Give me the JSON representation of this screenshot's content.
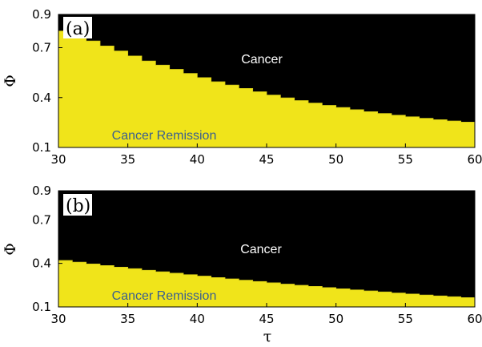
{
  "colors": {
    "cancer": "#000000",
    "remission": "#f0e41a",
    "cancer_label": "#ffffff",
    "remission_label": "#3a5f8f"
  },
  "chart_data": [
    {
      "type": "area",
      "panel_label": "(a)",
      "xlabel": "",
      "ylabel": "Φ",
      "xlim": [
        30,
        60
      ],
      "ylim": [
        0.1,
        0.9
      ],
      "xticks": [
        "30",
        "35",
        "40",
        "45",
        "50",
        "55",
        "60"
      ],
      "yticks": [
        "0.1",
        "0.4",
        "0.7",
        "0.9"
      ],
      "regions": {
        "above": "Cancer",
        "below": "Cancer Remission"
      },
      "boundary": {
        "x": [
          30,
          31,
          32,
          33,
          34,
          35,
          36,
          37,
          38,
          39,
          40,
          41,
          42,
          43,
          44,
          45,
          46,
          47,
          48,
          49,
          50,
          51,
          52,
          53,
          54,
          55,
          56,
          57,
          58,
          59,
          60
        ],
        "y": [
          0.8,
          0.77,
          0.74,
          0.71,
          0.68,
          0.65,
          0.62,
          0.595,
          0.57,
          0.545,
          0.52,
          0.495,
          0.475,
          0.455,
          0.435,
          0.415,
          0.398,
          0.382,
          0.367,
          0.353,
          0.34,
          0.327,
          0.315,
          0.304,
          0.294,
          0.284,
          0.275,
          0.267,
          0.259,
          0.252,
          0.245
        ]
      }
    },
    {
      "type": "area",
      "panel_label": "(b)",
      "xlabel": "τ",
      "ylabel": "Φ",
      "xlim": [
        30,
        60
      ],
      "ylim": [
        0.1,
        0.9
      ],
      "xticks": [
        "30",
        "35",
        "40",
        "45",
        "50",
        "55",
        "60"
      ],
      "yticks": [
        "0.1",
        "0.4",
        "0.7",
        "0.9"
      ],
      "regions": {
        "above": "Cancer",
        "below": "Cancer Remission"
      },
      "boundary": {
        "x": [
          30,
          31,
          32,
          33,
          34,
          35,
          36,
          37,
          38,
          39,
          40,
          41,
          42,
          43,
          44,
          45,
          46,
          47,
          48,
          49,
          50,
          51,
          52,
          53,
          54,
          55,
          56,
          57,
          58,
          59,
          60
        ],
        "y": [
          0.42,
          0.408,
          0.396,
          0.385,
          0.374,
          0.363,
          0.352,
          0.342,
          0.332,
          0.322,
          0.312,
          0.302,
          0.293,
          0.284,
          0.275,
          0.266,
          0.257,
          0.249,
          0.241,
          0.233,
          0.225,
          0.217,
          0.21,
          0.203,
          0.196,
          0.189,
          0.182,
          0.176,
          0.17,
          0.164,
          0.158
        ]
      }
    }
  ]
}
